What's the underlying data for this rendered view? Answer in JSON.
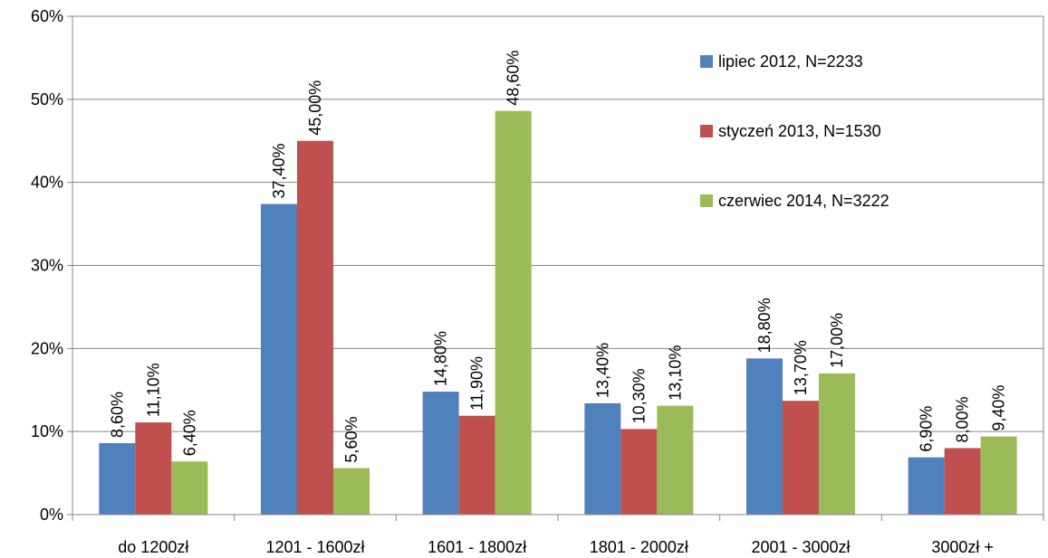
{
  "chart_data": {
    "type": "bar",
    "categories": [
      "do 1200zł",
      "1201 - 1600zł",
      "1601 - 1800zł",
      "1801 - 2000zł",
      "2001 - 3000zł",
      "3000zł +"
    ],
    "series": [
      {
        "name": "lipiec 2012, N=2233",
        "color": "#4f81bd",
        "values": [
          8.6,
          37.4,
          14.8,
          13.4,
          18.8,
          6.9
        ],
        "value_labels": [
          "8,60%",
          "37,40%",
          "14,80%",
          "13,40%",
          "18,80%",
          "6,90%"
        ]
      },
      {
        "name": "styczeń 2013, N=1530",
        "color": "#c0504d",
        "values": [
          11.1,
          45.0,
          11.9,
          10.3,
          13.7,
          8.0
        ],
        "value_labels": [
          "11,10%",
          "45,00%",
          "11,90%",
          "10,30%",
          "13,70%",
          "8,00%"
        ]
      },
      {
        "name": "czerwiec 2014, N=3222",
        "color": "#9bbb59",
        "values": [
          6.4,
          5.6,
          48.6,
          13.1,
          17.0,
          9.4
        ],
        "value_labels": [
          "6,40%",
          "5,60%",
          "48,60%",
          "13,10%",
          "17,00%",
          "9,40%"
        ]
      }
    ],
    "ylim": [
      0,
      60
    ],
    "yticks": [
      {
        "value": 0,
        "label": "0%"
      },
      {
        "value": 10,
        "label": "10%"
      },
      {
        "value": 20,
        "label": "20%"
      },
      {
        "value": 30,
        "label": "30%"
      },
      {
        "value": 40,
        "label": "40%"
      },
      {
        "value": 50,
        "label": "50%"
      },
      {
        "value": 60,
        "label": "60%"
      }
    ],
    "grid": true,
    "legend": "top-right"
  }
}
